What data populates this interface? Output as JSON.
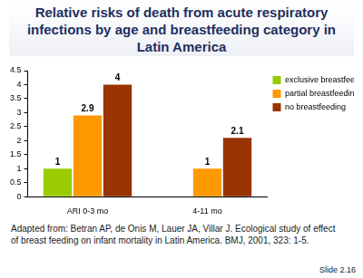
{
  "chart_data": {
    "type": "bar",
    "title": "Relative risks of death from acute respiratory infections by age and breastfeeding category in Latin America",
    "categories": [
      "ARI 0-3 mo",
      "4-11 mo"
    ],
    "series": [
      {
        "name": "exclusive breastfeeding",
        "color": "#99cc00",
        "values": [
          1,
          null
        ]
      },
      {
        "name": "partial breastfeeding",
        "color": "#ff9900",
        "values": [
          2.9,
          1
        ]
      },
      {
        "name": "no breastfeeding",
        "color": "#993300",
        "values": [
          4,
          2.1
        ]
      }
    ],
    "ylim": [
      0,
      4.5
    ],
    "yticks": [
      0,
      0.5,
      1,
      1.5,
      2,
      2.5,
      3,
      3.5,
      4,
      4.5
    ],
    "grid": false,
    "legend": "right",
    "data_labels": true,
    "annotations": [
      "Adapted from: Betran AP, de Onis M, Lauer JA, Villar J. Ecological study of effect of breast feeding on infant mortality in Latin America. BMJ, 2001, 323: 1-5.",
      "Slide 2.16"
    ]
  }
}
